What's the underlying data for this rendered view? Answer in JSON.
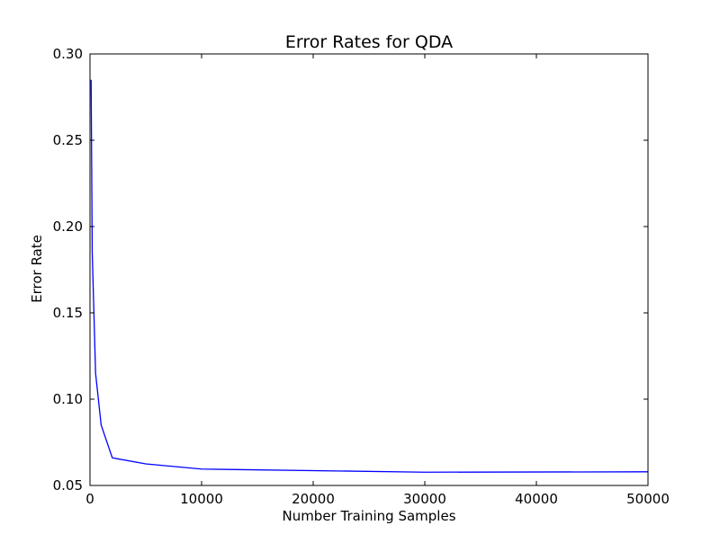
{
  "chart_data": {
    "type": "line",
    "title": "Error Rates for QDA",
    "xlabel": "Number Training Samples",
    "ylabel": "Error Rate",
    "xlim": [
      0,
      50000
    ],
    "ylim": [
      0.05,
      0.3
    ],
    "grid": false,
    "legend": "none",
    "x_ticks": [
      0,
      10000,
      20000,
      30000,
      40000,
      50000
    ],
    "x_tick_labels": [
      "0",
      "10000",
      "20000",
      "30000",
      "40000",
      "50000"
    ],
    "y_ticks": [
      0.05,
      0.1,
      0.15,
      0.2,
      0.25,
      0.3
    ],
    "y_tick_labels": [
      "0.05",
      "0.10",
      "0.15",
      "0.20",
      "0.25",
      "0.30"
    ],
    "series": [
      {
        "color": "#0000ff",
        "x": [
          100,
          200,
          500,
          1000,
          2000,
          5000,
          10000,
          30000,
          50000
        ],
        "y": [
          0.285,
          0.185,
          0.115,
          0.085,
          0.066,
          0.0625,
          0.0595,
          0.0577,
          0.0579
        ]
      }
    ]
  }
}
